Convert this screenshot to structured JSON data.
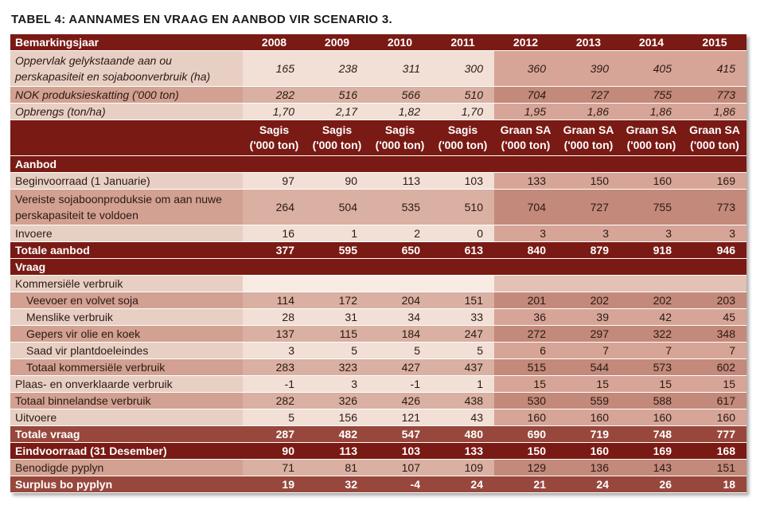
{
  "title": "TABEL 4: AANNAMES EN VRAAG EN AANBOD VIR SCENARIO 3.",
  "header": {
    "label": "Bemarkingsjaar",
    "years": [
      "2008",
      "2009",
      "2010",
      "2011",
      "2012",
      "2013",
      "2014",
      "2015"
    ]
  },
  "assumptions": [
    {
      "label": "Oppervlak gelykstaande aan ou perskapasiteit en sojaboonverbruik (ha)",
      "values": [
        "165",
        "238",
        "311",
        "300",
        "360",
        "390",
        "405",
        "415"
      ]
    },
    {
      "label": "NOK produksieskatting ('000 ton)",
      "values": [
        "282",
        "516",
        "566",
        "510",
        "704",
        "727",
        "755",
        "773"
      ]
    },
    {
      "label": "Opbrengs (ton/ha)",
      "values": [
        "1,70",
        "2,17",
        "1,82",
        "1,70",
        "1,95",
        "1,86",
        "1,86",
        "1,86"
      ]
    }
  ],
  "units": {
    "line1": [
      "Sagis",
      "Sagis",
      "Sagis",
      "Sagis",
      "Graan SA",
      "Graan SA",
      "Graan SA",
      "Graan SA"
    ],
    "line2": [
      "('000 ton)",
      "('000 ton)",
      "('000 ton)",
      "('000 ton)",
      "('000 ton)",
      "('000 ton)",
      "('000 ton)",
      "('000 ton)"
    ]
  },
  "supply": {
    "section_label": "Aanbod",
    "rows": [
      {
        "label": "Beginvoorraad (1 Januarie)",
        "values": [
          "97",
          "90",
          "113",
          "103",
          "133",
          "150",
          "160",
          "169"
        ]
      },
      {
        "label": "Vereiste sojaboonproduksie om aan nuwe perskapasiteit te voldoen",
        "values": [
          "264",
          "504",
          "535",
          "510",
          "704",
          "727",
          "755",
          "773"
        ]
      },
      {
        "label": "Invoere",
        "values": [
          "16",
          "1",
          "2",
          "0",
          "3",
          "3",
          "3",
          "3"
        ]
      }
    ],
    "total": {
      "label": "Totale aanbod",
      "values": [
        "377",
        "595",
        "650",
        "613",
        "840",
        "879",
        "918",
        "946"
      ]
    }
  },
  "demand": {
    "section_label": "Vraag",
    "commercial_label": "Kommersiële verbruik",
    "commercial_rows": [
      {
        "label": "Veevoer en volvet soja",
        "values": [
          "114",
          "172",
          "204",
          "151",
          "201",
          "202",
          "202",
          "203"
        ]
      },
      {
        "label": "Menslike verbruik",
        "values": [
          "28",
          "31",
          "34",
          "33",
          "36",
          "39",
          "42",
          "45"
        ]
      },
      {
        "label": "Gepers vir olie en koek",
        "values": [
          "137",
          "115",
          "184",
          "247",
          "272",
          "297",
          "322",
          "348"
        ]
      },
      {
        "label": "Saad vir plantdoeleindes",
        "values": [
          "3",
          "5",
          "5",
          "5",
          "6",
          "7",
          "7",
          "7"
        ]
      },
      {
        "label": "Totaal kommersiële verbruik",
        "values": [
          "283",
          "323",
          "427",
          "437",
          "515",
          "544",
          "573",
          "602"
        ]
      }
    ],
    "rows": [
      {
        "label": "Plaas- en onverklaarde verbruik",
        "values": [
          "-1",
          "3",
          "-1",
          "1",
          "15",
          "15",
          "15",
          "15"
        ]
      },
      {
        "label": "Totaal binnelandse verbruik",
        "values": [
          "282",
          "326",
          "426",
          "438",
          "530",
          "559",
          "588",
          "617"
        ]
      },
      {
        "label": "Uitvoere",
        "values": [
          "5",
          "156",
          "121",
          "43",
          "160",
          "160",
          "160",
          "160"
        ]
      }
    ],
    "total": {
      "label": "Totale vraag",
      "values": [
        "287",
        "482",
        "547",
        "480",
        "690",
        "719",
        "748",
        "777"
      ]
    }
  },
  "closing": {
    "ending_stock": {
      "label": "Eindvoorraad (31 Desember)",
      "values": [
        "90",
        "113",
        "103",
        "133",
        "150",
        "160",
        "169",
        "168"
      ]
    },
    "pipeline": {
      "label": "Benodigde pyplyn",
      "values": [
        "71",
        "81",
        "107",
        "109",
        "129",
        "136",
        "143",
        "151"
      ]
    },
    "surplus": {
      "label": "Surplus bo pyplyn",
      "values": [
        "19",
        "32",
        "-4",
        "24",
        "21",
        "24",
        "26",
        "18"
      ]
    }
  }
}
